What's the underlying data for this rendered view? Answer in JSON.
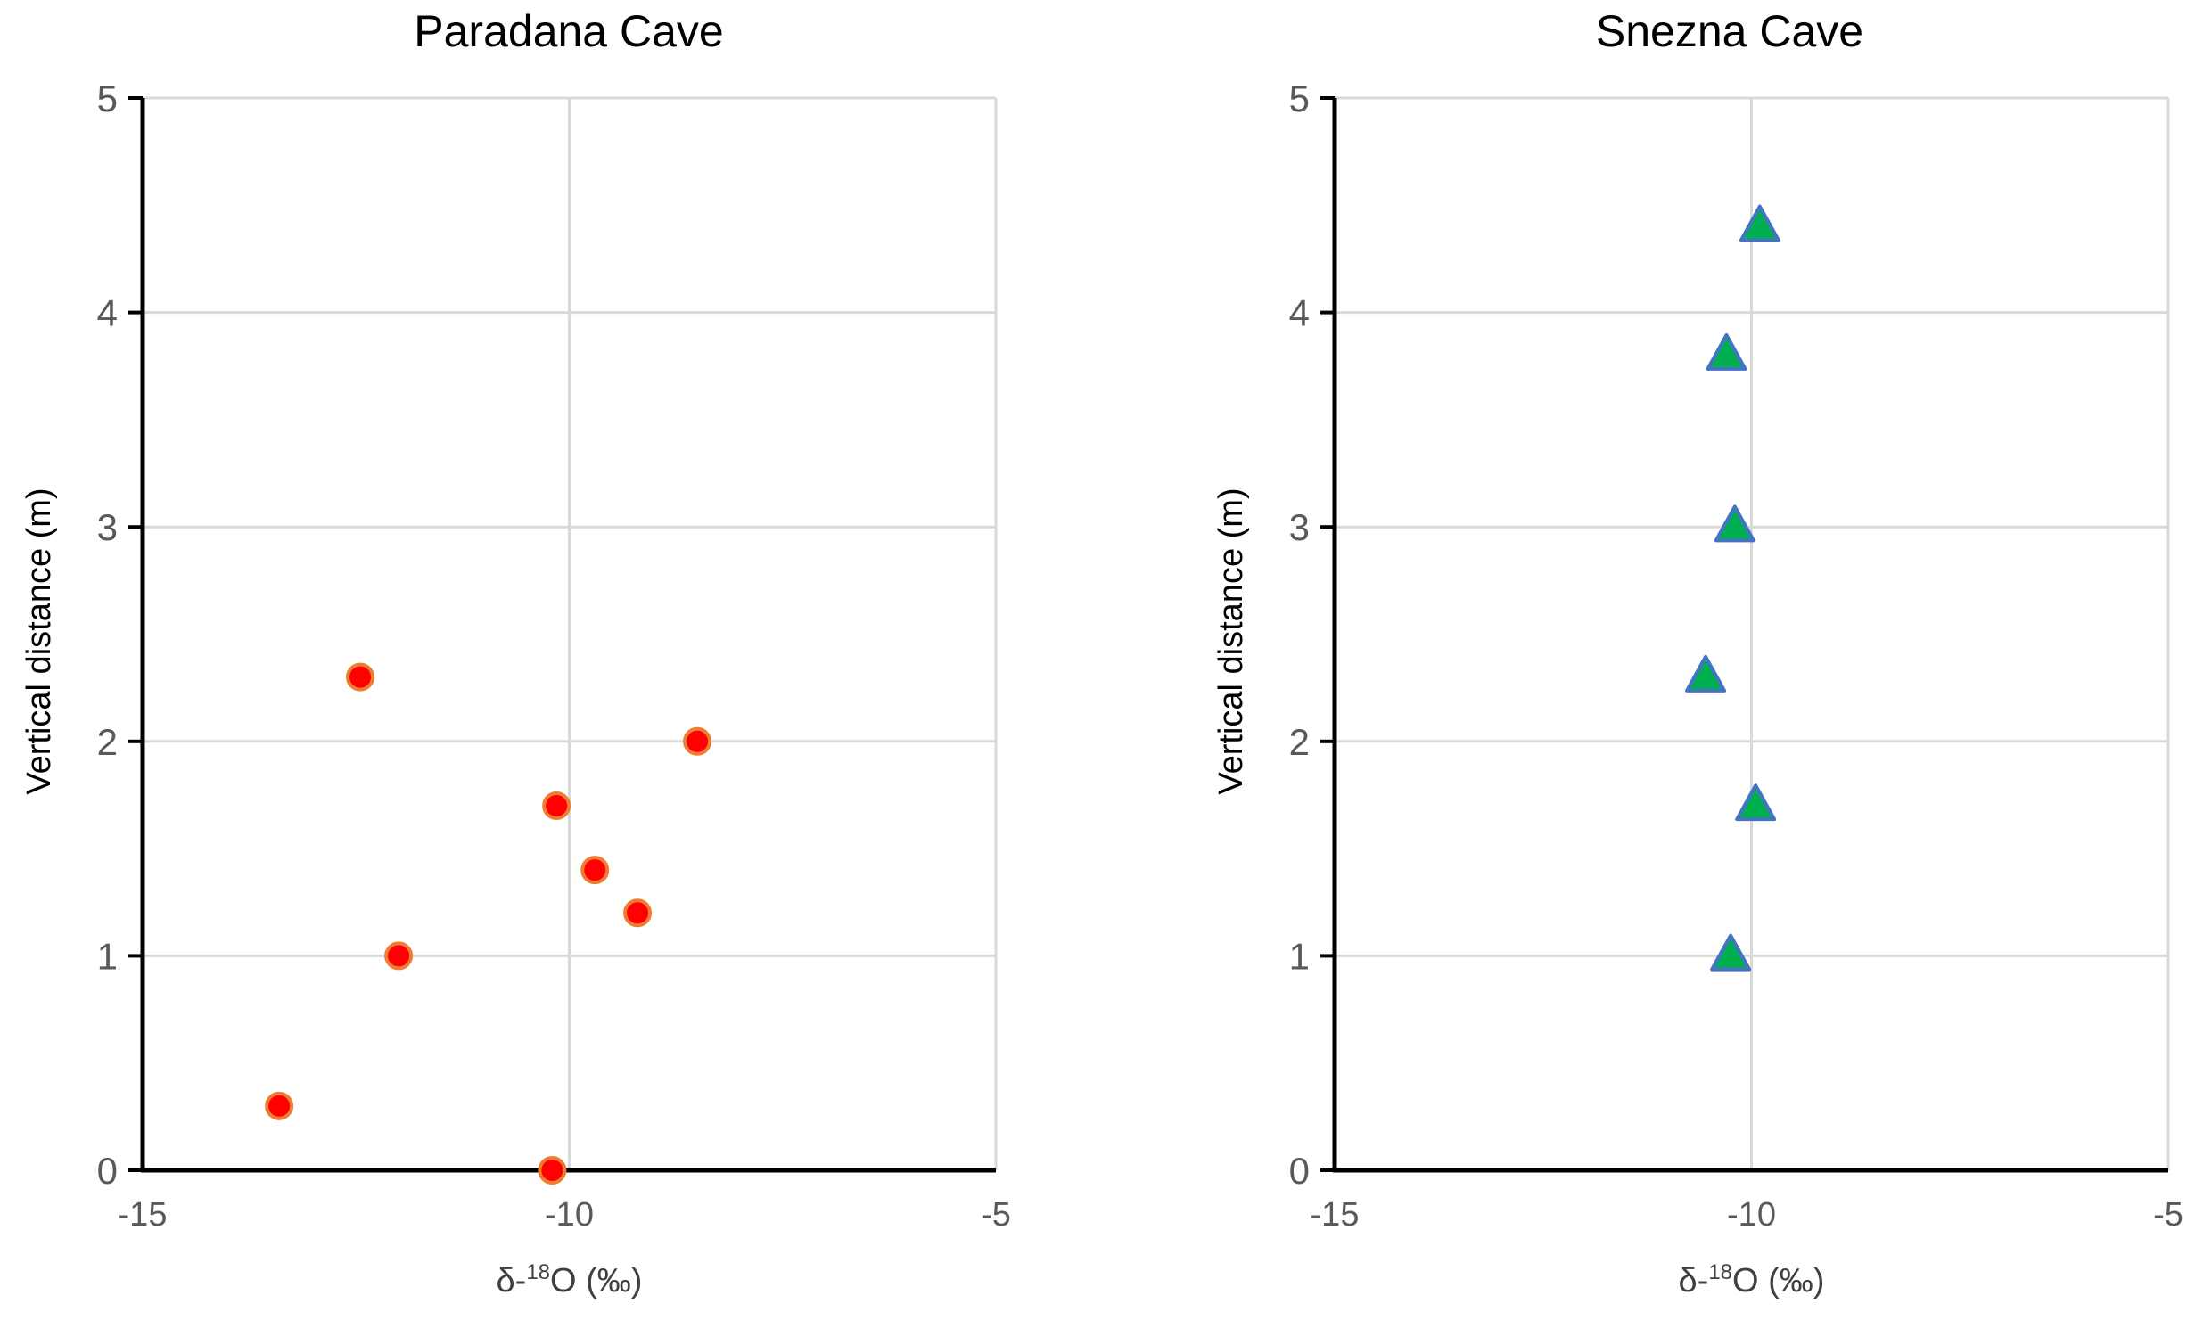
{
  "chart_data": [
    {
      "type": "scatter",
      "title": "Paradana Cave",
      "xlabel": "δ-18O (‰)",
      "xlabel_parts": [
        "δ-",
        "18",
        "O (‰)"
      ],
      "ylabel": "Vertical distance (m)",
      "xlim": [
        -15,
        -5
      ],
      "ylim": [
        0,
        5
      ],
      "xticks": [
        -15,
        -10,
        -5
      ],
      "yticks": [
        0,
        1,
        2,
        3,
        4,
        5
      ],
      "xtick_labels": [
        "-15",
        "-10",
        "-5"
      ],
      "ytick_labels": [
        "0",
        "1",
        "2",
        "3",
        "4",
        "5"
      ],
      "series": [
        {
          "name": "Paradana Cave",
          "marker": "circle",
          "fill": "#ff0000",
          "edge": "#ed7d31",
          "points": [
            {
              "x": -10.2,
              "y": 0.0
            },
            {
              "x": -13.4,
              "y": 0.3
            },
            {
              "x": -12.0,
              "y": 1.0
            },
            {
              "x": -9.2,
              "y": 1.2
            },
            {
              "x": -9.7,
              "y": 1.4
            },
            {
              "x": -10.15,
              "y": 1.7
            },
            {
              "x": -8.5,
              "y": 2.0
            },
            {
              "x": -12.45,
              "y": 2.3
            }
          ]
        }
      ]
    },
    {
      "type": "scatter",
      "title": "Snezna Cave",
      "xlabel": "δ-18O (‰)",
      "xlabel_parts": [
        "δ-",
        "18",
        "O (‰)"
      ],
      "ylabel": "Vertical distance (m)",
      "xlim": [
        -15,
        -5
      ],
      "ylim": [
        0,
        5
      ],
      "xticks": [
        -15,
        -10,
        -5
      ],
      "yticks": [
        0,
        1,
        2,
        3,
        4,
        5
      ],
      "xtick_labels": [
        "-15",
        "-10",
        "-5"
      ],
      "ytick_labels": [
        "0",
        "1",
        "2",
        "3",
        "4",
        "5"
      ],
      "series": [
        {
          "name": "Snezna Cave",
          "marker": "triangle",
          "fill": "#00b050",
          "edge": "#4472c4",
          "points": [
            {
              "x": -10.25,
              "y": 1.0
            },
            {
              "x": -9.95,
              "y": 1.7
            },
            {
              "x": -10.55,
              "y": 2.3
            },
            {
              "x": -10.2,
              "y": 3.0
            },
            {
              "x": -10.3,
              "y": 3.8
            },
            {
              "x": -9.9,
              "y": 4.4
            }
          ]
        }
      ]
    }
  ]
}
